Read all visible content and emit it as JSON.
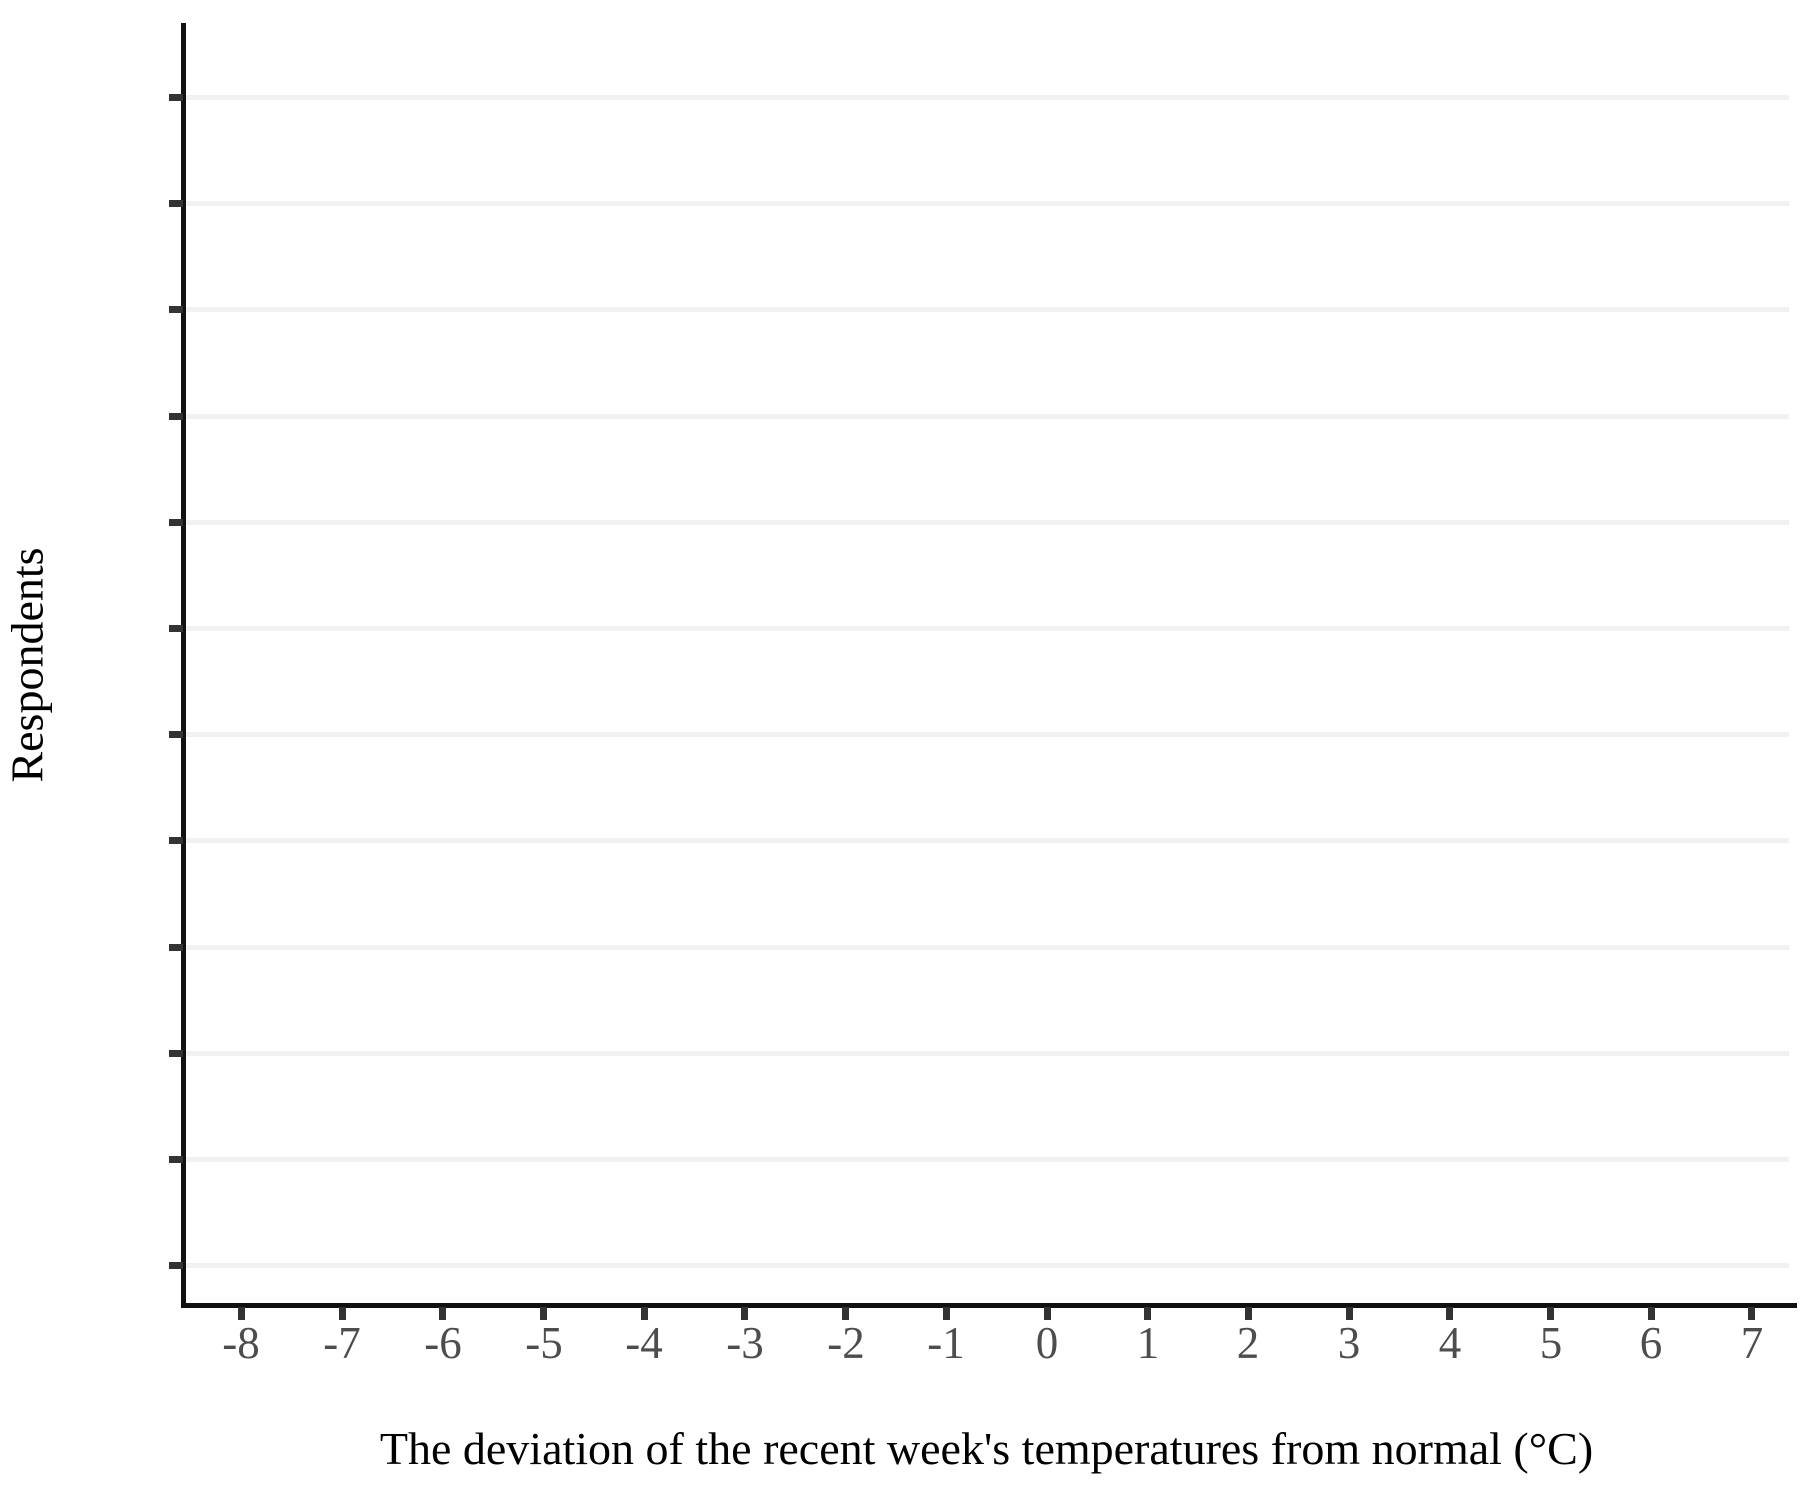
{
  "chart_data": {
    "type": "bar",
    "title": "",
    "xlabel": "The deviation of the recent week's temperatures from normal (°C)",
    "ylabel": "Respondents",
    "x_tick_labels": [
      "-8",
      "-7",
      "-6",
      "-5",
      "-4",
      "-3",
      "-2",
      "-1",
      "0",
      "1",
      "2",
      "3",
      "4",
      "5",
      "6",
      "7"
    ],
    "x_range": [
      -8.6,
      7.4
    ],
    "y_tick_labels": [],
    "y_gridline_count": 12,
    "series": [],
    "grid": "horizontal-major-only",
    "legend": "none",
    "panel_content": "empty"
  },
  "colors": {
    "background": "#ffffff",
    "axis_line": "#111111",
    "tick_mark": "#333333",
    "tick_label": "#4d4d4d",
    "axis_title": "#000000",
    "gridline": "#f1f1f1"
  }
}
